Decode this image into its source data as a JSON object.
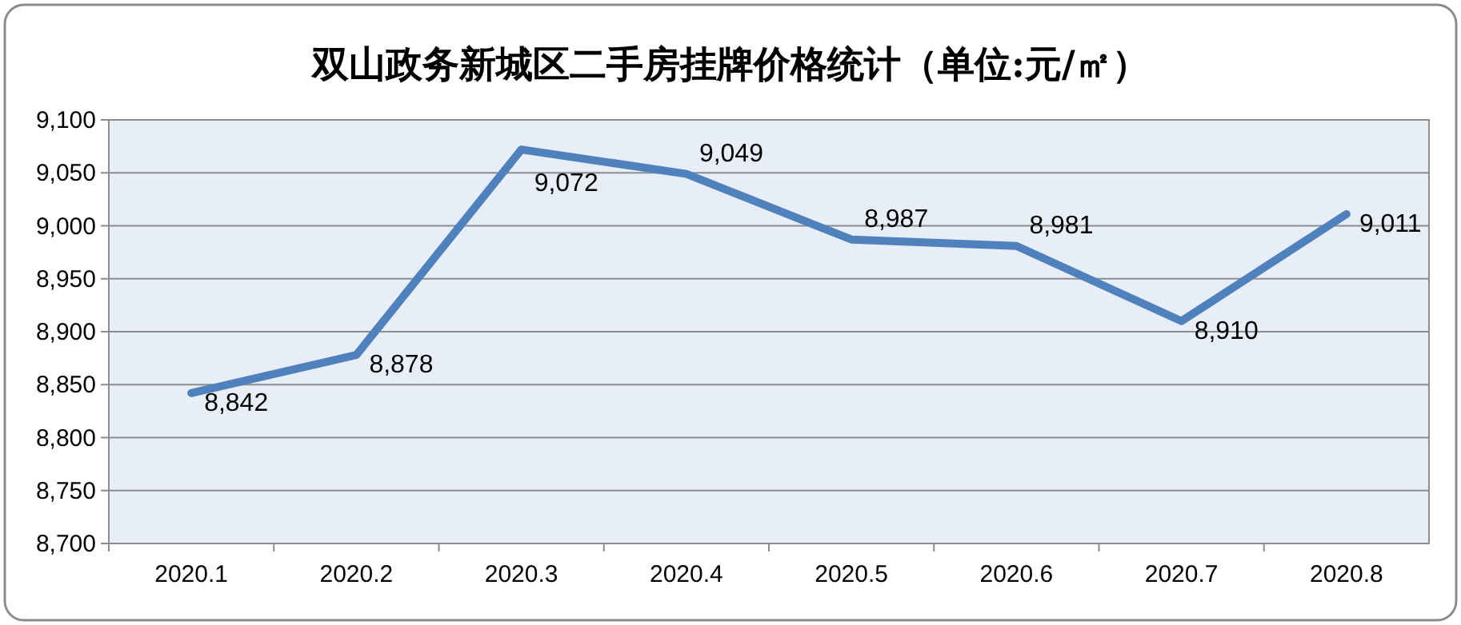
{
  "chart_data": {
    "type": "line",
    "title": "双山政务新城区二手房挂牌价格统计（单位:元/㎡）",
    "categories": [
      "2020.1",
      "2020.2",
      "2020.3",
      "2020.4",
      "2020.5",
      "2020.6",
      "2020.7",
      "2020.8"
    ],
    "values": [
      8842,
      8878,
      9072,
      9049,
      8987,
      8981,
      8910,
      9011
    ],
    "value_labels": [
      "8,842",
      "8,878",
      "9,072",
      "9,049",
      "8,987",
      "8,981",
      "8,910",
      "9,011"
    ],
    "color": "#4f81bd",
    "ylim": [
      8700,
      9100
    ],
    "yticks": [
      {
        "value": 8700,
        "label": "8,700"
      },
      {
        "value": 8750,
        "label": "8,750"
      },
      {
        "value": 8800,
        "label": "8,800"
      },
      {
        "value": 8850,
        "label": "8,850"
      },
      {
        "value": 8900,
        "label": "8,900"
      },
      {
        "value": 8950,
        "label": "8,950"
      },
      {
        "value": 9000,
        "label": "9,000"
      },
      {
        "value": 9050,
        "label": "9,050"
      },
      {
        "value": 9100,
        "label": "9,100"
      }
    ],
    "grid": "y"
  }
}
